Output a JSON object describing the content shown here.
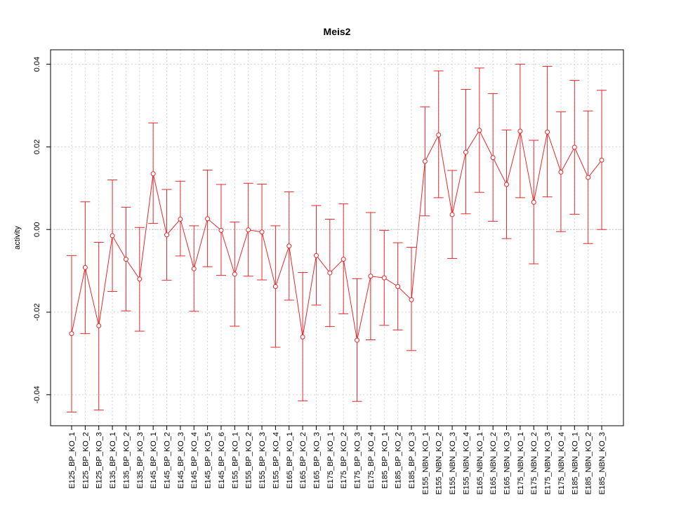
{
  "chart_data": {
    "type": "line",
    "title": "Meis2",
    "xlabel": "",
    "ylabel": "activity",
    "ylim": [
      -0.0475,
      0.0435
    ],
    "yticks": [
      -0.04,
      -0.02,
      0.0,
      0.02,
      0.04
    ],
    "ytick_labels": [
      "-0.04",
      "-0.02",
      "0.00",
      "0.02",
      "0.04"
    ],
    "grid": true,
    "zero_line": true,
    "colors": {
      "series": "#e8282b",
      "grid": "#d3d3d3",
      "axis": "#000000"
    },
    "categories": [
      "E125_BP_KO_1",
      "E125_BP_KO_2",
      "E125_BP_KO_3",
      "E135_BP_KO_1",
      "E135_BP_KO_2",
      "E135_BP_KO_3",
      "E145_BP_KO_1",
      "E145_BP_KO_2",
      "E145_BP_KO_3",
      "E145_BP_KO_4",
      "E145_BP_KO_5",
      "E145_BP_KO_6",
      "E155_BP_KO_1",
      "E155_BP_KO_2",
      "E155_BP_KO_3",
      "E155_BP_KO_4",
      "E165_BP_KO_1",
      "E165_BP_KO_2",
      "E165_BP_KO_3",
      "E175_BP_KO_1",
      "E175_BP_KO_2",
      "E175_BP_KO_3",
      "E175_BP_KO_4",
      "E185_BP_KO_1",
      "E185_BP_KO_2",
      "E185_BP_KO_3",
      "E155_NBN_KO_1",
      "E155_NBN_KO_2",
      "E155_NBN_KO_3",
      "E155_NBN_KO_4",
      "E165_NBN_KO_1",
      "E165_NBN_KO_2",
      "E165_NBN_KO_3",
      "E175_NBN_KO_1",
      "E175_NBN_KO_2",
      "E175_NBN_KO_3",
      "E175_NBN_KO_4",
      "E185_NBN_KO_1",
      "E185_NBN_KO_2",
      "E185_NBN_KO_3"
    ],
    "values": [
      -0.0252,
      -0.0092,
      -0.0233,
      -0.0015,
      -0.0072,
      -0.012,
      0.0135,
      -0.0013,
      0.0025,
      -0.0095,
      0.0026,
      -0.0002,
      -0.0108,
      -0.0001,
      -0.0006,
      -0.0138,
      -0.004,
      -0.026,
      -0.0063,
      -0.0105,
      -0.0072,
      -0.0268,
      -0.0113,
      -0.0117,
      -0.0138,
      -0.017,
      0.0165,
      0.0229,
      0.0036,
      0.0187,
      0.024,
      0.0174,
      0.0109,
      0.0238,
      0.0066,
      0.0236,
      0.0139,
      0.0199,
      0.0126,
      0.0168
    ],
    "upper": [
      -0.0063,
      0.0067,
      -0.0031,
      0.012,
      0.0054,
      0.0005,
      0.0258,
      0.0097,
      0.0117,
      0.0009,
      0.0144,
      0.0109,
      0.0018,
      0.0112,
      0.011,
      0.0009,
      0.0091,
      -0.0104,
      0.0058,
      0.0025,
      0.0062,
      -0.0119,
      0.0041,
      -0.0002,
      -0.0032,
      -0.0043,
      0.0297,
      0.0384,
      0.0143,
      0.0339,
      0.0391,
      0.0329,
      0.0241,
      0.04,
      0.0216,
      0.0395,
      0.0285,
      0.0361,
      0.0287,
      0.0337
    ],
    "lower": [
      -0.0442,
      -0.0252,
      -0.0437,
      -0.015,
      -0.0197,
      -0.0246,
      0.0015,
      -0.0123,
      -0.0064,
      -0.0198,
      -0.009,
      -0.0111,
      -0.0234,
      -0.0113,
      -0.0122,
      -0.0285,
      -0.0171,
      -0.0415,
      -0.0183,
      -0.0235,
      -0.0204,
      -0.0416,
      -0.0267,
      -0.0232,
      -0.0243,
      -0.0293,
      0.0033,
      0.0077,
      -0.007,
      0.0038,
      0.009,
      0.002,
      -0.0022,
      0.0077,
      -0.0083,
      0.0079,
      -0.0005,
      0.0037,
      -0.0034,
      0.0
    ]
  }
}
